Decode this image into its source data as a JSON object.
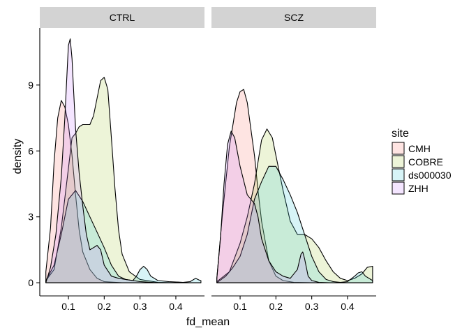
{
  "chart_data": {
    "type": "area",
    "xlabel": "fd_mean",
    "ylabel": "density",
    "xlim": [
      0.02,
      0.48
    ],
    "ylim": [
      -0.6,
      11.6
    ],
    "x_ticks": [
      0.1,
      0.2,
      0.3,
      0.4
    ],
    "x_tick_labels": [
      "0.1",
      "0.2",
      "0.3",
      "0.4"
    ],
    "y_ticks": [
      0,
      3,
      6,
      9
    ],
    "y_tick_labels": [
      "0",
      "3",
      "6",
      "9"
    ],
    "legend": {
      "title": "site",
      "entries": [
        "CMH",
        "COBRE",
        "ds000030",
        "ZHH"
      ],
      "placement": "right"
    },
    "series_colors": {
      "CMH": "#F8766D",
      "COBRE": "#A3C93A",
      "ds000030": "#35C9D6",
      "ZHH": "#C77CFF"
    },
    "panels": [
      {
        "strip_label": "CTRL",
        "series": [
          {
            "name": "CMH",
            "points": [
              [
                0.037,
                0.5
              ],
              [
                0.05,
                2.5
              ],
              [
                0.06,
                5.5
              ],
              [
                0.07,
                7.5
              ],
              [
                0.08,
                8.3
              ],
              [
                0.09,
                8.0
              ],
              [
                0.1,
                7.2
              ],
              [
                0.11,
                5.8
              ],
              [
                0.12,
                4.0
              ],
              [
                0.13,
                2.4
              ],
              [
                0.14,
                1.4
              ],
              [
                0.16,
                0.6
              ],
              [
                0.18,
                0.2
              ],
              [
                0.2,
                0.05
              ],
              [
                0.25,
                0.0
              ],
              [
                0.3,
                0.0
              ],
              [
                0.35,
                0.0
              ],
              [
                0.4,
                0.0
              ],
              [
                0.47,
                0.0
              ]
            ]
          },
          {
            "name": "COBRE",
            "points": [
              [
                0.037,
                0.1
              ],
              [
                0.06,
                0.6
              ],
              [
                0.08,
                2.5
              ],
              [
                0.1,
                5.2
              ],
              [
                0.11,
                6.6
              ],
              [
                0.12,
                6.8
              ],
              [
                0.13,
                7.1
              ],
              [
                0.14,
                7.2
              ],
              [
                0.15,
                7.2
              ],
              [
                0.16,
                7.2
              ],
              [
                0.17,
                7.6
              ],
              [
                0.18,
                8.4
              ],
              [
                0.19,
                9.2
              ],
              [
                0.2,
                9.35
              ],
              [
                0.21,
                8.8
              ],
              [
                0.22,
                6.6
              ],
              [
                0.23,
                4.3
              ],
              [
                0.24,
                2.4
              ],
              [
                0.25,
                1.3
              ],
              [
                0.27,
                0.5
              ],
              [
                0.3,
                0.15
              ],
              [
                0.35,
                0.02
              ],
              [
                0.4,
                0.0
              ],
              [
                0.47,
                0.0
              ]
            ]
          },
          {
            "name": "ds000030",
            "points": [
              [
                0.037,
                0.1
              ],
              [
                0.06,
                0.8
              ],
              [
                0.08,
                2.2
              ],
              [
                0.1,
                3.8
              ],
              [
                0.12,
                4.2
              ],
              [
                0.14,
                3.7
              ],
              [
                0.16,
                3.0
              ],
              [
                0.18,
                2.3
              ],
              [
                0.2,
                1.6
              ],
              [
                0.22,
                0.8
              ],
              [
                0.24,
                0.3
              ],
              [
                0.26,
                0.15
              ],
              [
                0.28,
                0.1
              ],
              [
                0.29,
                0.3
              ],
              [
                0.3,
                0.6
              ],
              [
                0.31,
                0.75
              ],
              [
                0.32,
                0.6
              ],
              [
                0.33,
                0.3
              ],
              [
                0.35,
                0.1
              ],
              [
                0.38,
                0.05
              ],
              [
                0.42,
                0.02
              ],
              [
                0.44,
                0.05
              ],
              [
                0.455,
                0.2
              ],
              [
                0.465,
                0.12
              ],
              [
                0.47,
                0.1
              ]
            ]
          },
          {
            "name": "ZHH",
            "points": [
              [
                0.037,
                0.0
              ],
              [
                0.05,
                0.7
              ],
              [
                0.065,
                2.2
              ],
              [
                0.08,
                4.8
              ],
              [
                0.09,
                7.5
              ],
              [
                0.095,
                9.2
              ],
              [
                0.1,
                10.8
              ],
              [
                0.105,
                11.1
              ],
              [
                0.11,
                10.2
              ],
              [
                0.115,
                8.6
              ],
              [
                0.12,
                7.0
              ],
              [
                0.13,
                5.0
              ],
              [
                0.14,
                3.5
              ],
              [
                0.15,
                2.2
              ],
              [
                0.16,
                1.5
              ],
              [
                0.17,
                1.6
              ],
              [
                0.18,
                1.7
              ],
              [
                0.19,
                1.5
              ],
              [
                0.2,
                0.8
              ],
              [
                0.22,
                0.3
              ],
              [
                0.24,
                0.2
              ],
              [
                0.26,
                0.15
              ],
              [
                0.3,
                0.05
              ],
              [
                0.35,
                0.0
              ],
              [
                0.47,
                0.0
              ]
            ]
          }
        ]
      },
      {
        "strip_label": "SCZ",
        "series": [
          {
            "name": "CMH",
            "points": [
              [
                0.035,
                0.2
              ],
              [
                0.05,
                3.0
              ],
              [
                0.07,
                6.2
              ],
              [
                0.09,
                8.2
              ],
              [
                0.1,
                8.7
              ],
              [
                0.11,
                8.8
              ],
              [
                0.12,
                8.2
              ],
              [
                0.14,
                5.8
              ],
              [
                0.15,
                4.2
              ],
              [
                0.16,
                2.8
              ],
              [
                0.18,
                1.0
              ],
              [
                0.2,
                0.3
              ],
              [
                0.22,
                0.1
              ],
              [
                0.25,
                0.02
              ],
              [
                0.3,
                0.0
              ],
              [
                0.35,
                0.0
              ],
              [
                0.4,
                0.0
              ],
              [
                0.47,
                0.0
              ]
            ]
          },
          {
            "name": "COBRE",
            "points": [
              [
                0.035,
                0.05
              ],
              [
                0.07,
                0.5
              ],
              [
                0.1,
                1.8
              ],
              [
                0.12,
                3.0
              ],
              [
                0.14,
                4.5
              ],
              [
                0.16,
                6.5
              ],
              [
                0.175,
                7.0
              ],
              [
                0.19,
                6.6
              ],
              [
                0.2,
                5.8
              ],
              [
                0.22,
                4.2
              ],
              [
                0.24,
                2.8
              ],
              [
                0.26,
                2.2
              ],
              [
                0.28,
                2.2
              ],
              [
                0.3,
                2.0
              ],
              [
                0.32,
                1.6
              ],
              [
                0.34,
                1.0
              ],
              [
                0.36,
                0.5
              ],
              [
                0.38,
                0.2
              ],
              [
                0.4,
                0.1
              ],
              [
                0.42,
                0.2
              ],
              [
                0.44,
                0.4
              ],
              [
                0.455,
                0.7
              ],
              [
                0.47,
                0.75
              ]
            ]
          },
          {
            "name": "ds000030",
            "points": [
              [
                0.035,
                0.0
              ],
              [
                0.06,
                0.3
              ],
              [
                0.08,
                0.7
              ],
              [
                0.1,
                1.2
              ],
              [
                0.12,
                2.2
              ],
              [
                0.14,
                3.8
              ],
              [
                0.16,
                4.6
              ],
              [
                0.18,
                5.3
              ],
              [
                0.2,
                5.3
              ],
              [
                0.22,
                4.7
              ],
              [
                0.24,
                4.0
              ],
              [
                0.26,
                3.2
              ],
              [
                0.28,
                2.2
              ],
              [
                0.3,
                1.2
              ],
              [
                0.32,
                0.5
              ],
              [
                0.34,
                0.15
              ],
              [
                0.36,
                0.05
              ],
              [
                0.38,
                0.02
              ],
              [
                0.4,
                0.05
              ],
              [
                0.42,
                0.3
              ],
              [
                0.43,
                0.45
              ],
              [
                0.44,
                0.5
              ],
              [
                0.45,
                0.3
              ],
              [
                0.47,
                0.1
              ]
            ]
          },
          {
            "name": "ZHH",
            "points": [
              [
                0.035,
                0.2
              ],
              [
                0.045,
                2.0
              ],
              [
                0.055,
                4.5
              ],
              [
                0.065,
                6.3
              ],
              [
                0.075,
                6.9
              ],
              [
                0.085,
                6.6
              ],
              [
                0.1,
                5.3
              ],
              [
                0.12,
                4.0
              ],
              [
                0.14,
                3.6
              ],
              [
                0.15,
                3.0
              ],
              [
                0.16,
                2.0
              ],
              [
                0.18,
                1.0
              ],
              [
                0.2,
                0.5
              ],
              [
                0.22,
                0.3
              ],
              [
                0.24,
                0.2
              ],
              [
                0.26,
                0.6
              ],
              [
                0.27,
                1.3
              ],
              [
                0.275,
                1.4
              ],
              [
                0.28,
                1.1
              ],
              [
                0.29,
                0.3
              ],
              [
                0.3,
                0.1
              ],
              [
                0.32,
                0.02
              ],
              [
                0.35,
                0.0
              ],
              [
                0.47,
                0.0
              ]
            ]
          }
        ]
      }
    ]
  }
}
